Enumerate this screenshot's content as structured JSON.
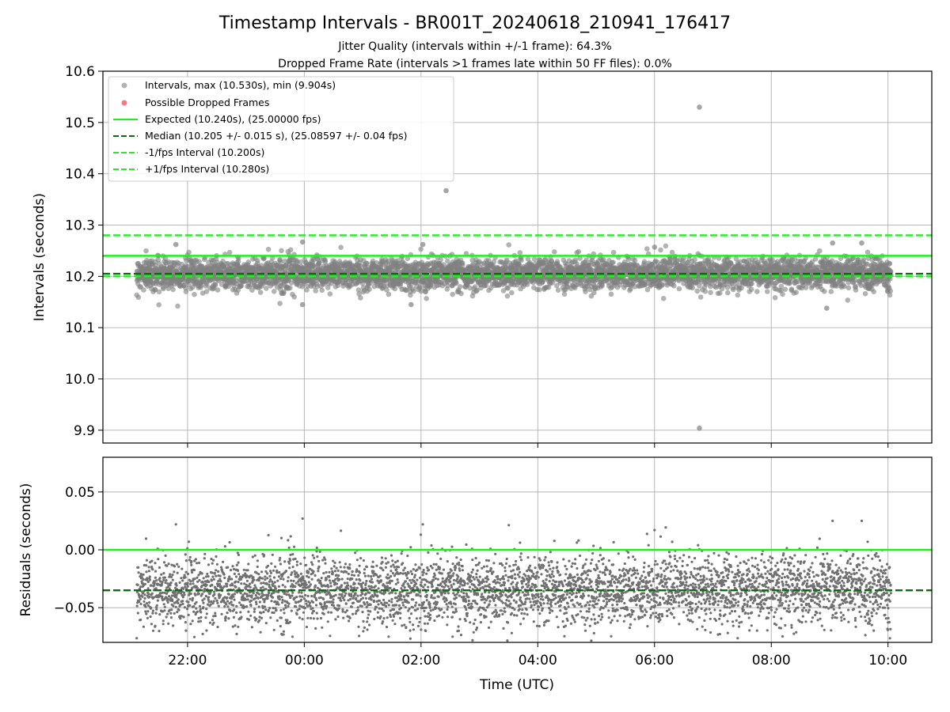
{
  "chart_data": {
    "type": "scatter",
    "title": "Timestamp Intervals - BR001T_20240618_210941_176417",
    "subtitles": [
      "Jitter Quality (intervals within +/-1 frame): 64.3%",
      "Dropped Frame Rate (intervals >1 frames late within 50 FF files): 0.0%"
    ],
    "xlabel": "Time (UTC)",
    "x_ticks": [
      "22:00",
      "00:00",
      "02:00",
      "04:00",
      "06:00",
      "08:00",
      "10:00"
    ],
    "x_tick_hours": [
      22,
      24,
      26,
      28,
      30,
      32,
      34
    ],
    "xlim_hours": [
      20.55,
      34.75
    ],
    "data_x_range_hours": [
      21.13,
      34.05
    ],
    "grid": true,
    "top_panel": {
      "ylabel": "Intervals (seconds)",
      "ylim": [
        9.875,
        10.6
      ],
      "y_ticks": [
        "9.9",
        "10.0",
        "10.1",
        "10.2",
        "10.3",
        "10.4",
        "10.5",
        "10.6"
      ],
      "y_tick_values": [
        9.9,
        10.0,
        10.1,
        10.2,
        10.3,
        10.4,
        10.5,
        10.6
      ],
      "reference_lines": [
        {
          "name": "Expected (10.240s), (25.00000 fps)",
          "value": 10.24,
          "color": "#1ef01e",
          "style": "solid"
        },
        {
          "name": "Median (10.205 +/- 0.015 s), (25.08597 +/- 0.04 fps)",
          "value": 10.205,
          "color": "#0a6e0a",
          "style": "dashed"
        },
        {
          "name": "-1/fps Interval (10.200s)",
          "value": 10.2,
          "color": "#1ef01e",
          "style": "dashed"
        },
        {
          "name": "+1/fps Interval (10.280s)",
          "value": 10.28,
          "color": "#1ef01e",
          "style": "dashed"
        }
      ],
      "series": [
        {
          "name": "Intervals, max (10.530s), min (9.904s)",
          "color": "#808080",
          "center": 10.205,
          "spread": 0.015,
          "count": 4400
        },
        {
          "name": "Possible Dropped Frames",
          "color": "#f05a5a",
          "count": 0
        }
      ],
      "outliers": [
        {
          "x_hours": 30.77,
          "y": 10.53
        },
        {
          "x_hours": 30.77,
          "y": 9.904
        },
        {
          "x_hours": 26.43,
          "y": 10.367
        },
        {
          "x_hours": 23.97,
          "y": 10.267
        },
        {
          "x_hours": 33.05,
          "y": 10.265
        },
        {
          "x_hours": 33.55,
          "y": 10.265
        },
        {
          "x_hours": 21.8,
          "y": 10.262
        },
        {
          "x_hours": 26.03,
          "y": 10.262
        },
        {
          "x_hours": 30.0,
          "y": 10.257
        },
        {
          "x_hours": 32.95,
          "y": 10.138
        },
        {
          "x_hours": 25.83,
          "y": 10.145
        },
        {
          "x_hours": 23.97,
          "y": 10.145
        }
      ],
      "legend": "top-left"
    },
    "bottom_panel": {
      "ylabel": "Residuals (seconds)",
      "ylim": [
        -0.08,
        0.08
      ],
      "y_ticks": [
        "−0.05",
        "0.00",
        "0.05"
      ],
      "y_tick_values": [
        -0.05,
        0.0,
        0.05
      ],
      "reference_lines": [
        {
          "name": "Expected",
          "value": 0.0,
          "color": "#1ef01e",
          "style": "solid"
        },
        {
          "name": "Median",
          "value": -0.035,
          "color": "#0a6e0a",
          "style": "dashed"
        }
      ],
      "series": [
        {
          "name": "Residuals",
          "color": "#808080",
          "center": -0.035,
          "spread": 0.015,
          "count": 4400
        }
      ]
    }
  }
}
